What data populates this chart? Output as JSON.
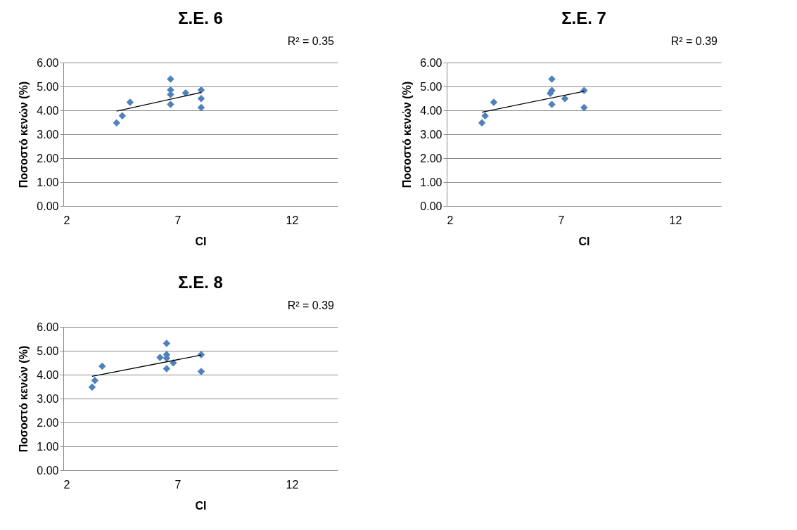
{
  "chart_data": [
    {
      "type": "scatter",
      "title": "Σ.Ε. 6",
      "xlabel": "CI",
      "ylabel": "Ποσοστό κενών (%)",
      "annotations": [
        "R² = 0.35"
      ],
      "xlim": [
        2,
        14
      ],
      "xticks": [
        2,
        7,
        12
      ],
      "ylim": [
        0,
        6
      ],
      "yticks": [
        {
          "value": 0,
          "label": "0.00"
        },
        {
          "value": 1,
          "label": "1.00"
        },
        {
          "value": 2,
          "label": "2.00"
        },
        {
          "value": 3,
          "label": "3.00"
        },
        {
          "value": 4,
          "label": "4.00"
        },
        {
          "value": 5,
          "label": "5.00"
        },
        {
          "value": 6,
          "label": "6.00"
        }
      ],
      "grid": "y",
      "marker": "diamond",
      "series": [
        {
          "color": "#4f81bd",
          "x": [
            4.33,
            4.58,
            4.92,
            6.69,
            6.69,
            6.69,
            6.69,
            7.35,
            8.03,
            8.03,
            8.03
          ],
          "values": [
            3.48,
            3.77,
            4.34,
            5.31,
            4.85,
            4.66,
            4.25,
            4.73,
            4.85,
            4.49,
            4.12
          ]
        },
        {
          "type": "line",
          "marker": "none",
          "color": "#000000",
          "x": [
            4.33,
            8.03
          ],
          "values": [
            3.97,
            4.75
          ]
        }
      ]
    },
    {
      "type": "scatter",
      "title": "Σ.Ε. 7",
      "xlabel": "CI",
      "ylabel": "Ποσοστό κενών (%)",
      "annotations": [
        "R² = 0.39"
      ],
      "xlim": [
        2,
        14
      ],
      "xticks": [
        2,
        7,
        12
      ],
      "ylim": [
        0,
        6
      ],
      "yticks": [
        {
          "value": 0,
          "label": "0.00"
        },
        {
          "value": 1,
          "label": "1.00"
        },
        {
          "value": 2,
          "label": "2.00"
        },
        {
          "value": 3,
          "label": "3.00"
        },
        {
          "value": 4,
          "label": "4.00"
        },
        {
          "value": 5,
          "label": "5.00"
        },
        {
          "value": 6,
          "label": "6.00"
        }
      ],
      "grid": "y",
      "marker": "diamond",
      "series": [
        {
          "color": "#4f81bd",
          "x": [
            3.54,
            3.68,
            4.06,
            6.6,
            6.6,
            6.53,
            6.6,
            7.17,
            8.01,
            8.01
          ],
          "values": [
            3.48,
            3.77,
            4.34,
            5.31,
            4.83,
            4.71,
            4.25,
            4.49,
            4.83,
            4.12
          ]
        },
        {
          "type": "line",
          "marker": "none",
          "color": "#000000",
          "x": [
            3.54,
            8.01
          ],
          "values": [
            3.92,
            4.8
          ]
        }
      ]
    },
    {
      "type": "scatter",
      "title": "Σ.Ε. 8",
      "xlabel": "CI",
      "ylabel": "Ποσοστό κενών (%)",
      "annotations": [
        "R² = 0.39"
      ],
      "xlim": [
        2,
        14
      ],
      "xticks": [
        2,
        7,
        12
      ],
      "ylim": [
        0,
        6
      ],
      "yticks": [
        {
          "value": 0,
          "label": "0.00"
        },
        {
          "value": 1,
          "label": "1.00"
        },
        {
          "value": 2,
          "label": "2.00"
        },
        {
          "value": 3,
          "label": "3.00"
        },
        {
          "value": 4,
          "label": "4.00"
        },
        {
          "value": 5,
          "label": "5.00"
        },
        {
          "value": 6,
          "label": "6.00"
        }
      ],
      "grid": "y",
      "marker": "diamond",
      "series": [
        {
          "color": "#4f81bd",
          "x": [
            3.26,
            3.38,
            3.7,
            6.52,
            6.52,
            6.23,
            6.52,
            6.81,
            6.52,
            8.03,
            8.03
          ],
          "values": [
            3.48,
            3.76,
            4.35,
            5.31,
            4.84,
            4.72,
            4.69,
            4.49,
            4.25,
            4.84,
            4.13
          ]
        },
        {
          "type": "line",
          "marker": "none",
          "color": "#000000",
          "x": [
            3.26,
            8.03
          ],
          "values": [
            3.93,
            4.82
          ]
        }
      ]
    }
  ]
}
